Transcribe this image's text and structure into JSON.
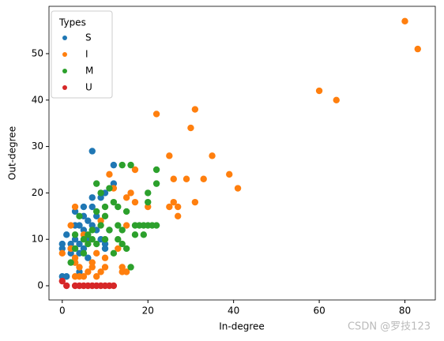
{
  "chart_data": {
    "type": "scatter",
    "x_label": "In-degree",
    "y_label": "Out-degree",
    "legend_title": "Types",
    "legend": "upper left",
    "xlim": [
      -3.1,
      87.1
    ],
    "ylim": [
      -3.06,
      60.2
    ],
    "xticks": [
      0,
      20,
      40,
      60,
      80
    ],
    "yticks": [
      0,
      10,
      20,
      30,
      40,
      50
    ],
    "series": [
      {
        "name": "S",
        "color": "#1f77b4",
        "x": [
          0,
          0,
          0,
          1,
          1,
          2,
          2,
          2,
          3,
          3,
          3,
          4,
          4,
          4,
          5,
          5,
          5,
          6,
          6,
          7,
          7,
          7,
          7,
          8,
          8,
          9,
          9,
          10,
          10,
          10,
          11,
          12,
          12,
          5,
          6,
          3,
          4
        ],
        "values": [
          8,
          9,
          2,
          2,
          11,
          9,
          8,
          7,
          16,
          5,
          10,
          13,
          9,
          7,
          17,
          15,
          12,
          10,
          14,
          29,
          19,
          17,
          13,
          12,
          15,
          10,
          19,
          20,
          9,
          8,
          12,
          26,
          22,
          8,
          6,
          13,
          3
        ]
      },
      {
        "name": "I",
        "color": "#ff7f0e",
        "x": [
          0,
          2,
          3,
          3,
          3,
          3,
          4,
          4,
          5,
          5,
          6,
          7,
          7,
          8,
          9,
          9,
          10,
          10,
          11,
          12,
          13,
          14,
          14,
          15,
          15,
          15,
          16,
          17,
          17,
          20,
          22,
          25,
          25,
          26,
          26,
          27,
          27,
          29,
          30,
          31,
          31,
          33,
          35,
          39,
          41,
          60,
          64,
          80,
          83,
          2,
          8
        ],
        "values": [
          7,
          13,
          17,
          6,
          5,
          2,
          4,
          2,
          11,
          2,
          3,
          5,
          4,
          2,
          3,
          14,
          6,
          4,
          24,
          21,
          8,
          4,
          3,
          3,
          13,
          19,
          20,
          25,
          18,
          17,
          37,
          28,
          17,
          18,
          23,
          15,
          17,
          23,
          34,
          38,
          18,
          23,
          28,
          24,
          21,
          42,
          40,
          57,
          51,
          8,
          7
        ]
      },
      {
        "name": "M",
        "color": "#2ca02c",
        "x": [
          2,
          3,
          4,
          5,
          6,
          6,
          7,
          7,
          8,
          8,
          8,
          9,
          9,
          10,
          10,
          10,
          11,
          11,
          12,
          12,
          13,
          13,
          13,
          14,
          14,
          14,
          15,
          15,
          16,
          16,
          17,
          17,
          18,
          19,
          19,
          20,
          20,
          20,
          21,
          22,
          22,
          22,
          3,
          5
        ],
        "values": [
          5,
          8,
          15,
          10,
          9,
          11,
          10,
          12,
          22,
          16,
          9,
          20,
          13,
          17,
          15,
          10,
          21,
          12,
          18,
          7,
          17,
          13,
          10,
          12,
          9,
          26,
          16,
          8,
          26,
          4,
          13,
          11,
          13,
          11,
          13,
          20,
          18,
          13,
          13,
          25,
          22,
          13,
          11,
          7
        ]
      },
      {
        "name": "U",
        "color": "#d62728",
        "x": [
          0,
          1,
          3,
          4,
          5,
          6,
          7,
          8,
          9,
          10,
          11,
          12
        ],
        "values": [
          1,
          0,
          0,
          0,
          0,
          0,
          0,
          0,
          0,
          0,
          0,
          0
        ]
      }
    ]
  },
  "watermark": "CSDN @罗技123"
}
